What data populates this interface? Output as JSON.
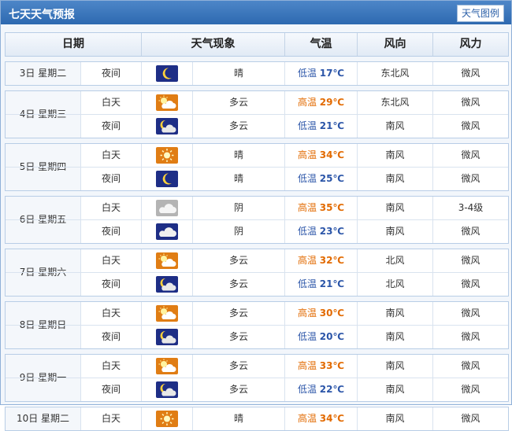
{
  "window": {
    "title": "七天天气预报",
    "legend_button": "天气图例"
  },
  "columns": [
    "日期",
    "天气现象",
    "气温",
    "风向",
    "风力"
  ],
  "days": [
    {
      "date": "3日 星期二",
      "rows": [
        {
          "period": "夜间",
          "icon": "moon-icon",
          "weather": "晴",
          "temp_label": "低温",
          "temp": "17℃",
          "wind_dir": "东北风",
          "wind_force": "微风"
        }
      ]
    },
    {
      "date": "4日 星期三",
      "rows": [
        {
          "period": "白天",
          "icon": "partly-cloudy-day-icon",
          "weather": "多云",
          "temp_label": "高温",
          "temp": "29℃",
          "wind_dir": "东北风",
          "wind_force": "微风"
        },
        {
          "period": "夜间",
          "icon": "partly-cloudy-night-icon",
          "weather": "多云",
          "temp_label": "低温",
          "temp": "21℃",
          "wind_dir": "南风",
          "wind_force": "微风"
        }
      ]
    },
    {
      "date": "5日 星期四",
      "rows": [
        {
          "period": "白天",
          "icon": "sun-icon",
          "weather": "晴",
          "temp_label": "高温",
          "temp": "34℃",
          "wind_dir": "南风",
          "wind_force": "微风"
        },
        {
          "period": "夜间",
          "icon": "moon-icon",
          "weather": "晴",
          "temp_label": "低温",
          "temp": "25℃",
          "wind_dir": "南风",
          "wind_force": "微风"
        }
      ]
    },
    {
      "date": "6日 星期五",
      "rows": [
        {
          "period": "白天",
          "icon": "overcast-icon",
          "weather": "阴",
          "temp_label": "高温",
          "temp": "35℃",
          "wind_dir": "南风",
          "wind_force": "3-4级"
        },
        {
          "period": "夜间",
          "icon": "overcast-night-icon",
          "weather": "阴",
          "temp_label": "低温",
          "temp": "23℃",
          "wind_dir": "南风",
          "wind_force": "微风"
        }
      ]
    },
    {
      "date": "7日 星期六",
      "rows": [
        {
          "period": "白天",
          "icon": "partly-cloudy-day-icon",
          "weather": "多云",
          "temp_label": "高温",
          "temp": "32℃",
          "wind_dir": "北风",
          "wind_force": "微风"
        },
        {
          "period": "夜间",
          "icon": "partly-cloudy-night-icon",
          "weather": "多云",
          "temp_label": "低温",
          "temp": "21℃",
          "wind_dir": "北风",
          "wind_force": "微风"
        }
      ]
    },
    {
      "date": "8日 星期日",
      "rows": [
        {
          "period": "白天",
          "icon": "partly-cloudy-day-icon",
          "weather": "多云",
          "temp_label": "高温",
          "temp": "30℃",
          "wind_dir": "南风",
          "wind_force": "微风"
        },
        {
          "period": "夜间",
          "icon": "partly-cloudy-night-icon",
          "weather": "多云",
          "temp_label": "低温",
          "temp": "20℃",
          "wind_dir": "南风",
          "wind_force": "微风"
        }
      ]
    },
    {
      "date": "9日 星期一",
      "rows": [
        {
          "period": "白天",
          "icon": "partly-cloudy-day-icon",
          "weather": "多云",
          "temp_label": "高温",
          "temp": "33℃",
          "wind_dir": "南风",
          "wind_force": "微风"
        },
        {
          "period": "夜间",
          "icon": "partly-cloudy-night-icon",
          "weather": "多云",
          "temp_label": "低温",
          "temp": "22℃",
          "wind_dir": "南风",
          "wind_force": "微风"
        }
      ]
    },
    {
      "date": "10日 星期二",
      "rows": [
        {
          "period": "白天",
          "icon": "sun-icon",
          "weather": "晴",
          "temp_label": "高温",
          "temp": "34℃",
          "wind_dir": "南风",
          "wind_force": "微风"
        }
      ]
    }
  ],
  "colors": {
    "high_temp": "#e26a00",
    "low_temp": "#2b55a8",
    "title_bar": "#3b77bd"
  }
}
